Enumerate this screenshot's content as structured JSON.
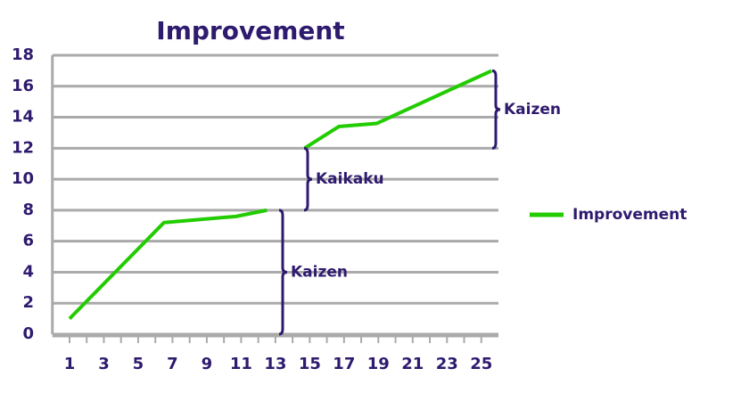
{
  "chart_data": {
    "type": "line",
    "title": "Improvement",
    "series": [
      {
        "name": "Improvement",
        "color": "#22cc00",
        "x": [
          1,
          6.5,
          10.7,
          12.5,
          13.5,
          14.7,
          16.7,
          18.9,
          25.6
        ],
        "values": [
          1,
          7.2,
          7.6,
          8,
          null,
          12,
          13.4,
          13.6,
          17
        ]
      }
    ],
    "xlim": [
      0,
      26
    ],
    "xticks": [
      1,
      3,
      5,
      7,
      9,
      11,
      13,
      15,
      17,
      19,
      21,
      23,
      25
    ],
    "ylim": [
      0,
      18
    ],
    "yticks": [
      0,
      2,
      4,
      6,
      8,
      10,
      12,
      14,
      16,
      18
    ],
    "grid": true,
    "legend": "right",
    "annotations": [
      {
        "text": "Kaizen",
        "range": [
          0,
          8
        ]
      },
      {
        "text": "Kaikaku",
        "range": [
          8,
          12
        ]
      },
      {
        "text": "Kaizen",
        "range": [
          12,
          17
        ]
      }
    ]
  }
}
